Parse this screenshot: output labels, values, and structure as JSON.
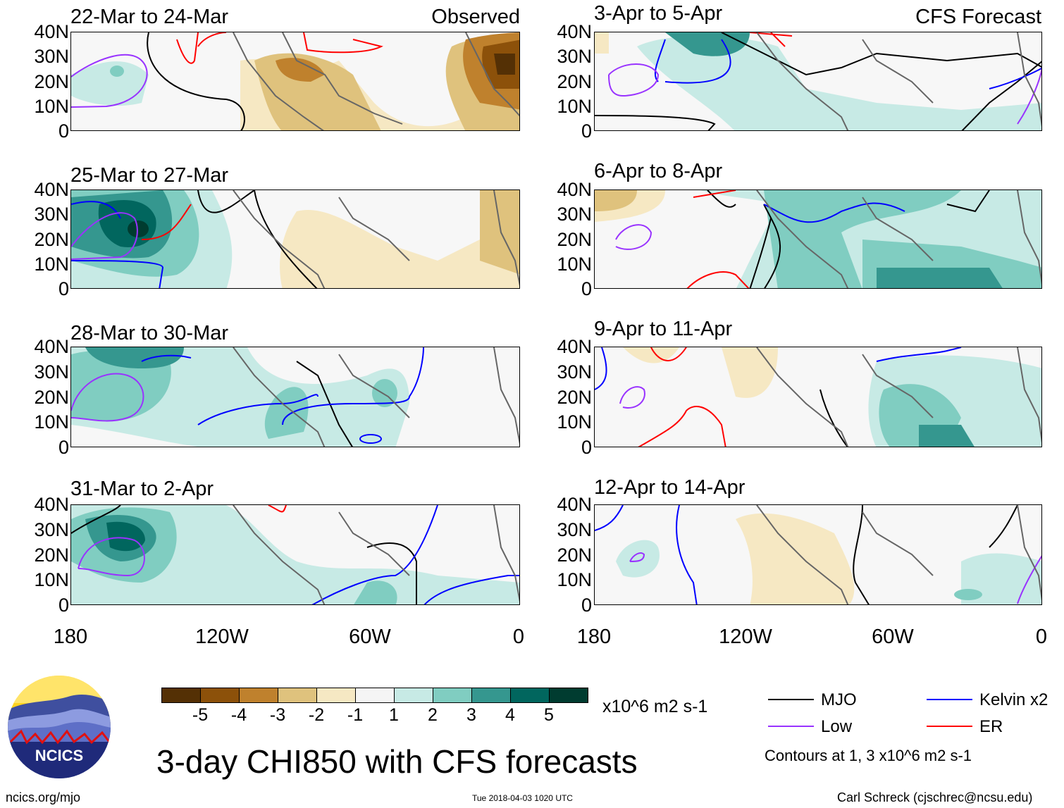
{
  "main_title": "3-day CHI850 with CFS forecasts",
  "left_column_tag": "Observed",
  "right_column_tag": "CFS Forecast",
  "panels_left": [
    {
      "title": "22-Mar to 24-Mar"
    },
    {
      "title": "25-Mar to 27-Mar"
    },
    {
      "title": "28-Mar to 30-Mar"
    },
    {
      "title": "31-Mar to 2-Apr"
    }
  ],
  "panels_right": [
    {
      "title": "3-Apr to 5-Apr"
    },
    {
      "title": "6-Apr to 8-Apr"
    },
    {
      "title": "9-Apr to 11-Apr"
    },
    {
      "title": "12-Apr to 14-Apr"
    }
  ],
  "lat_labels": [
    "40N",
    "30N",
    "20N",
    "10N",
    "0"
  ],
  "lon_labels": [
    "180",
    "120W",
    "60W",
    "0"
  ],
  "colorbar": {
    "colors": [
      "#543005",
      "#8c510a",
      "#bf812d",
      "#dfc27d",
      "#f6e8c3",
      "#f5f5f5",
      "#c7eae5",
      "#80cdc1",
      "#35978f",
      "#01665e",
      "#003c30"
    ],
    "labels": [
      "-5",
      "-4",
      "-3",
      "-2",
      "-1",
      "1",
      "2",
      "3",
      "4",
      "5"
    ],
    "units": "x10^6 m2 s-1"
  },
  "legend": {
    "items": [
      {
        "label": "MJO",
        "color": "#000000"
      },
      {
        "label": "Kelvin x2",
        "color": "#0000ff"
      },
      {
        "label": "Low",
        "color": "#9933ff"
      },
      {
        "label": "ER",
        "color": "#ff0000"
      }
    ],
    "contours_note": "Contours at 1, 3 x10^6 m2 s-1"
  },
  "logo_text": "NCICS",
  "footer": {
    "website": "ncics.org/mjo",
    "timestamp": "Tue 2018-04-03 1020 UTC",
    "credit": "Carl Schreck (cjschrec@ncsu.edu)"
  }
}
